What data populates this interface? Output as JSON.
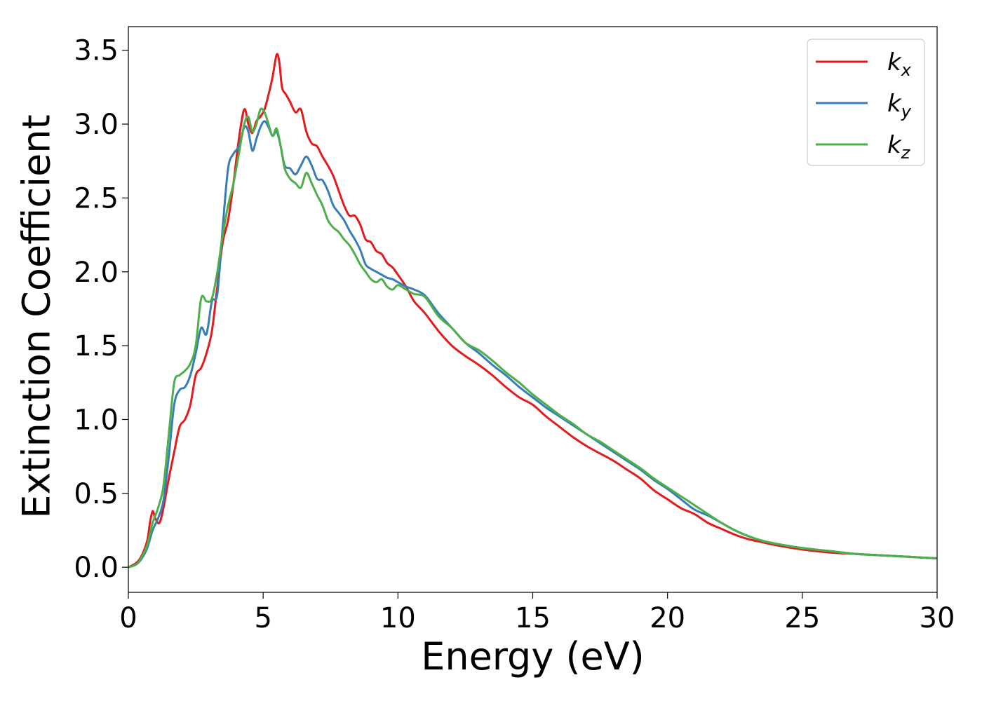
{
  "chart_data": {
    "type": "line",
    "xlabel": "Energy (eV)",
    "ylabel": "Extinction Coefficient",
    "xlim": [
      0,
      30
    ],
    "ylim": [
      -0.17,
      3.66
    ],
    "xticks": [
      0,
      5,
      10,
      15,
      20,
      25,
      30
    ],
    "xtick_labels": [
      "0",
      "5",
      "10",
      "15",
      "20",
      "25",
      "30"
    ],
    "yticks": [
      0.0,
      0.5,
      1.0,
      1.5,
      2.0,
      2.5,
      3.0,
      3.5
    ],
    "ytick_labels": [
      "0.0",
      "0.5",
      "1.0",
      "1.5",
      "2.0",
      "2.5",
      "3.0",
      "3.5"
    ],
    "grid": false,
    "legend_position": "top-right",
    "series": [
      {
        "name": "k",
        "subscript": "x",
        "color": "#e41a1c",
        "x": [
          0,
          0.3,
          0.5,
          0.7,
          0.8,
          0.9,
          1.0,
          1.15,
          1.3,
          1.5,
          1.7,
          1.9,
          2.1,
          2.3,
          2.5,
          2.7,
          2.9,
          3.1,
          3.3,
          3.5,
          3.7,
          3.9,
          4.1,
          4.3,
          4.45,
          4.6,
          4.75,
          4.9,
          5.05,
          5.2,
          5.35,
          5.5,
          5.6,
          5.7,
          5.85,
          6.0,
          6.2,
          6.4,
          6.6,
          6.8,
          7.0,
          7.2,
          7.4,
          7.6,
          7.8,
          8.0,
          8.2,
          8.4,
          8.6,
          8.8,
          9.0,
          9.2,
          9.4,
          9.6,
          9.8,
          10.0,
          10.3,
          10.6,
          11.0,
          11.5,
          12.0,
          12.5,
          13.0,
          13.5,
          14.0,
          14.5,
          15.0,
          15.5,
          16.0,
          16.5,
          17.0,
          17.5,
          18.0,
          18.5,
          19.0,
          19.5,
          20.0,
          20.5,
          21.0,
          21.5,
          22.0,
          22.5,
          23.0,
          23.5,
          24.0,
          25.0,
          26.0,
          27.0,
          28.0,
          29.0,
          30.0
        ],
        "y": [
          0.0,
          0.03,
          0.08,
          0.18,
          0.3,
          0.38,
          0.33,
          0.3,
          0.4,
          0.6,
          0.78,
          0.95,
          1.0,
          1.1,
          1.3,
          1.35,
          1.45,
          1.6,
          1.9,
          2.2,
          2.35,
          2.6,
          2.9,
          3.1,
          3.0,
          2.94,
          3.02,
          3.05,
          3.1,
          3.2,
          3.32,
          3.47,
          3.42,
          3.25,
          3.2,
          3.15,
          3.08,
          3.1,
          2.95,
          2.87,
          2.85,
          2.78,
          2.72,
          2.65,
          2.55,
          2.45,
          2.38,
          2.38,
          2.32,
          2.22,
          2.2,
          2.14,
          2.12,
          2.06,
          2.03,
          1.98,
          1.9,
          1.8,
          1.72,
          1.6,
          1.5,
          1.43,
          1.37,
          1.3,
          1.22,
          1.15,
          1.1,
          1.02,
          0.95,
          0.88,
          0.82,
          0.77,
          0.72,
          0.66,
          0.6,
          0.52,
          0.46,
          0.4,
          0.36,
          0.3,
          0.26,
          0.22,
          0.19,
          0.17,
          0.15,
          0.12,
          0.1,
          0.09,
          0.08,
          0.07,
          0.06
        ]
      },
      {
        "name": "k",
        "subscript": "y",
        "color": "#377eb8",
        "x": [
          0,
          0.3,
          0.5,
          0.7,
          0.9,
          1.1,
          1.3,
          1.5,
          1.7,
          1.9,
          2.1,
          2.3,
          2.5,
          2.7,
          2.9,
          3.1,
          3.3,
          3.5,
          3.7,
          3.9,
          4.1,
          4.3,
          4.45,
          4.6,
          4.75,
          4.9,
          5.05,
          5.2,
          5.35,
          5.5,
          5.65,
          5.8,
          6.0,
          6.2,
          6.4,
          6.6,
          6.8,
          7.0,
          7.2,
          7.4,
          7.6,
          7.8,
          8.0,
          8.2,
          8.4,
          8.6,
          8.8,
          9.0,
          9.2,
          9.4,
          9.6,
          9.8,
          10.0,
          10.3,
          10.6,
          11.0,
          11.5,
          12.0,
          12.5,
          13.0,
          13.5,
          14.0,
          14.5,
          15.0,
          15.5,
          16.0,
          16.5,
          17.0,
          17.5,
          18.0,
          18.5,
          19.0,
          19.5,
          20.0,
          20.5,
          21.0,
          21.5,
          22.0,
          22.5,
          23.0,
          23.5,
          24.0,
          25.0,
          26.0,
          27.0,
          28.0,
          29.0,
          30.0
        ],
        "y": [
          0.0,
          0.02,
          0.06,
          0.13,
          0.25,
          0.33,
          0.45,
          0.75,
          1.1,
          1.2,
          1.22,
          1.3,
          1.45,
          1.62,
          1.58,
          1.8,
          1.85,
          2.3,
          2.7,
          2.8,
          2.85,
          2.98,
          2.95,
          2.82,
          2.9,
          2.98,
          3.02,
          2.98,
          2.92,
          2.95,
          2.85,
          2.72,
          2.7,
          2.66,
          2.72,
          2.78,
          2.72,
          2.63,
          2.62,
          2.55,
          2.45,
          2.4,
          2.35,
          2.28,
          2.22,
          2.15,
          2.05,
          2.02,
          2.0,
          1.98,
          1.96,
          1.95,
          1.93,
          1.9,
          1.88,
          1.84,
          1.72,
          1.62,
          1.52,
          1.45,
          1.37,
          1.3,
          1.22,
          1.15,
          1.08,
          1.02,
          0.96,
          0.9,
          0.84,
          0.78,
          0.72,
          0.66,
          0.59,
          0.53,
          0.46,
          0.39,
          0.35,
          0.3,
          0.25,
          0.21,
          0.18,
          0.16,
          0.13,
          0.11,
          0.09,
          0.08,
          0.07,
          0.06
        ]
      },
      {
        "name": "k",
        "subscript": "z",
        "color": "#4daf4a",
        "x": [
          0,
          0.3,
          0.5,
          0.7,
          0.9,
          1.1,
          1.3,
          1.5,
          1.7,
          1.9,
          2.1,
          2.3,
          2.5,
          2.7,
          2.9,
          3.1,
          3.3,
          3.5,
          3.7,
          3.9,
          4.1,
          4.3,
          4.45,
          4.6,
          4.75,
          4.9,
          5.05,
          5.2,
          5.35,
          5.5,
          5.65,
          5.8,
          6.0,
          6.2,
          6.4,
          6.6,
          6.8,
          7.0,
          7.2,
          7.4,
          7.6,
          7.8,
          8.0,
          8.2,
          8.4,
          8.6,
          8.8,
          9.0,
          9.2,
          9.4,
          9.6,
          9.8,
          10.0,
          10.3,
          10.6,
          11.0,
          11.5,
          12.0,
          12.5,
          13.0,
          13.5,
          14.0,
          14.5,
          15.0,
          15.5,
          16.0,
          16.5,
          17.0,
          17.5,
          18.0,
          18.5,
          19.0,
          19.5,
          20.0,
          20.5,
          21.0,
          21.5,
          22.0,
          22.5,
          23.0,
          23.5,
          24.0,
          25.0,
          26.0,
          27.0,
          28.0,
          29.0,
          30.0
        ],
        "y": [
          0.0,
          0.02,
          0.07,
          0.15,
          0.3,
          0.4,
          0.55,
          0.9,
          1.25,
          1.3,
          1.33,
          1.38,
          1.5,
          1.82,
          1.8,
          1.82,
          2.0,
          2.25,
          2.45,
          2.6,
          2.8,
          3.0,
          3.05,
          2.95,
          3.0,
          3.1,
          3.08,
          3.0,
          2.92,
          2.97,
          2.85,
          2.7,
          2.63,
          2.6,
          2.57,
          2.67,
          2.6,
          2.52,
          2.45,
          2.35,
          2.3,
          2.27,
          2.22,
          2.18,
          2.12,
          2.05,
          2.0,
          1.95,
          1.93,
          1.95,
          1.9,
          1.88,
          1.91,
          1.88,
          1.85,
          1.83,
          1.7,
          1.62,
          1.52,
          1.47,
          1.4,
          1.32,
          1.25,
          1.17,
          1.1,
          1.03,
          0.97,
          0.9,
          0.85,
          0.79,
          0.73,
          0.67,
          0.6,
          0.54,
          0.48,
          0.42,
          0.36,
          0.3,
          0.25,
          0.21,
          0.18,
          0.16,
          0.13,
          0.11,
          0.09,
          0.08,
          0.07,
          0.06
        ]
      }
    ]
  }
}
